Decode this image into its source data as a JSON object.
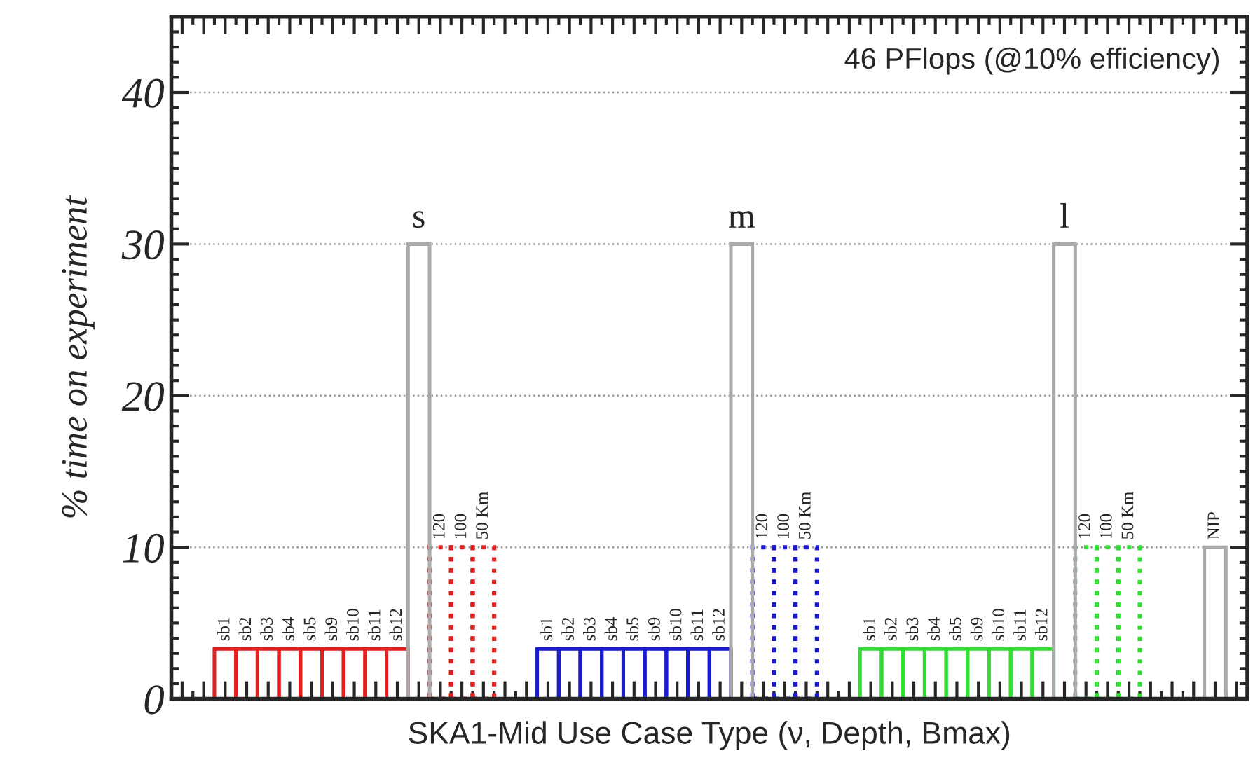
{
  "chart_data": {
    "type": "bar",
    "annotations": [
      "46 PFlops (@10% efficiency)"
    ],
    "xlabel": "SKA1-Mid Use Case Type (ν, Depth, Bmax)",
    "ylabel": "% time on experiment",
    "categories": [
      null,
      null,
      "sb1",
      "sb2",
      "sb3",
      "sb4",
      "sb5",
      "sb9",
      "sb10",
      "sb11",
      "sb12",
      "s",
      "120",
      "100",
      "50 Km",
      null,
      null,
      "sb1",
      "sb2",
      "sb3",
      "sb4",
      "sb5",
      "sb9",
      "sb10",
      "sb11",
      "sb12",
      "m",
      "120",
      "100",
      "50 Km",
      null,
      null,
      "sb1",
      "sb2",
      "sb3",
      "sb4",
      "sb5",
      "sb9",
      "sb10",
      "sb11",
      "sb12",
      "l",
      "120",
      "100",
      "50 Km",
      null,
      null,
      null,
      "NIP",
      null
    ],
    "series": [
      {
        "color": "#e02020",
        "line_style": "solid",
        "values": [
          null,
          null,
          3.3,
          3.3,
          3.3,
          3.3,
          3.3,
          3.3,
          3.3,
          3.3,
          3.3,
          null,
          null,
          null,
          null,
          null,
          null,
          null,
          null,
          null,
          null,
          null,
          null,
          null,
          null,
          null,
          null,
          null,
          null,
          null,
          null,
          null,
          null,
          null,
          null,
          null,
          null,
          null,
          null,
          null,
          null,
          null,
          null,
          null,
          null,
          null,
          null,
          null,
          null,
          null
        ]
      },
      {
        "color": "#e02020",
        "line_style": "dotted",
        "values": [
          null,
          null,
          null,
          null,
          null,
          null,
          null,
          null,
          null,
          null,
          null,
          null,
          10,
          10,
          10,
          null,
          null,
          null,
          null,
          null,
          null,
          null,
          null,
          null,
          null,
          null,
          null,
          null,
          null,
          null,
          null,
          null,
          null,
          null,
          null,
          null,
          null,
          null,
          null,
          null,
          null,
          null,
          null,
          null,
          null,
          null,
          null,
          null,
          null,
          null
        ]
      },
      {
        "color": "#1a1acc",
        "line_style": "solid",
        "values": [
          null,
          null,
          null,
          null,
          null,
          null,
          null,
          null,
          null,
          null,
          null,
          null,
          null,
          null,
          null,
          null,
          null,
          3.3,
          3.3,
          3.3,
          3.3,
          3.3,
          3.3,
          3.3,
          3.3,
          3.3,
          null,
          null,
          null,
          null,
          null,
          null,
          null,
          null,
          null,
          null,
          null,
          null,
          null,
          null,
          null,
          null,
          null,
          null,
          null,
          null,
          null,
          null,
          null,
          null
        ]
      },
      {
        "color": "#1a1acc",
        "line_style": "dotted",
        "values": [
          null,
          null,
          null,
          null,
          null,
          null,
          null,
          null,
          null,
          null,
          null,
          null,
          null,
          null,
          null,
          null,
          null,
          null,
          null,
          null,
          null,
          null,
          null,
          null,
          null,
          null,
          null,
          10,
          10,
          10,
          null,
          null,
          null,
          null,
          null,
          null,
          null,
          null,
          null,
          null,
          null,
          null,
          null,
          null,
          null,
          null,
          null,
          null,
          null,
          null
        ]
      },
      {
        "color": "#33dd33",
        "line_style": "solid",
        "values": [
          null,
          null,
          null,
          null,
          null,
          null,
          null,
          null,
          null,
          null,
          null,
          null,
          null,
          null,
          null,
          null,
          null,
          null,
          null,
          null,
          null,
          null,
          null,
          null,
          null,
          null,
          null,
          null,
          null,
          null,
          null,
          null,
          3.3,
          3.3,
          3.3,
          3.3,
          3.3,
          3.3,
          3.3,
          3.3,
          3.3,
          null,
          null,
          null,
          null,
          null,
          null,
          null,
          null,
          null
        ]
      },
      {
        "color": "#33dd33",
        "line_style": "dotted",
        "values": [
          null,
          null,
          null,
          null,
          null,
          null,
          null,
          null,
          null,
          null,
          null,
          null,
          null,
          null,
          null,
          null,
          null,
          null,
          null,
          null,
          null,
          null,
          null,
          null,
          null,
          null,
          null,
          null,
          null,
          null,
          null,
          null,
          null,
          null,
          null,
          null,
          null,
          null,
          null,
          null,
          null,
          null,
          10,
          10,
          10,
          null,
          null,
          null,
          null,
          null
        ]
      },
      {
        "color": "#aaaaaa",
        "line_style": "solid",
        "values": [
          null,
          null,
          null,
          null,
          null,
          null,
          null,
          null,
          null,
          null,
          null,
          30,
          null,
          null,
          null,
          null,
          null,
          null,
          null,
          null,
          null,
          null,
          null,
          null,
          null,
          null,
          30,
          null,
          null,
          null,
          null,
          null,
          null,
          null,
          null,
          null,
          null,
          null,
          null,
          null,
          null,
          30,
          null,
          null,
          null,
          null,
          null,
          null,
          10,
          null
        ]
      }
    ],
    "ylim": [
      0,
      45
    ],
    "yticks": [
      0,
      10,
      20,
      30,
      40
    ],
    "grid": "y",
    "tick_labels": "y",
    "legend": false
  }
}
